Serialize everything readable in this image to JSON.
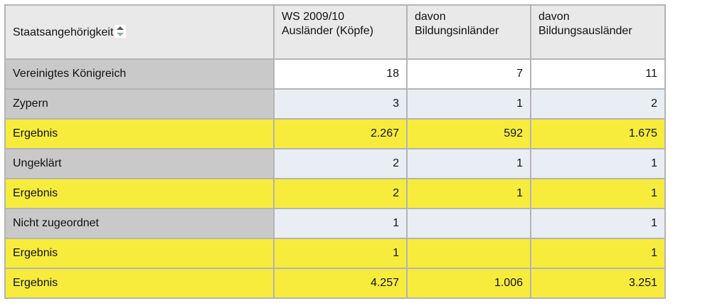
{
  "table": {
    "header": [
      "Staatsangehörigkeit",
      "WS 2009/10\nAusländer (Köpfe)",
      "davon\nBildungsinländer",
      "davon\nBildungsausländer"
    ],
    "rows": [
      [
        "Vereinigtes Königreich",
        "18",
        "7",
        "11"
      ],
      [
        "Zypern",
        "3",
        "1",
        "2"
      ],
      [
        "Ergebnis",
        "2.267",
        "592",
        "1.675"
      ],
      [
        "Ungeklärt",
        "2",
        "1",
        "1"
      ],
      [
        "Ergebnis",
        "2",
        "1",
        "1"
      ],
      [
        "Nicht zugeordnet",
        "1",
        null,
        "1"
      ],
      [
        "Ergebnis",
        "1",
        null,
        "1"
      ],
      [
        "Ergebnis",
        "4.257",
        "1.006",
        "3.251"
      ]
    ]
  }
}
